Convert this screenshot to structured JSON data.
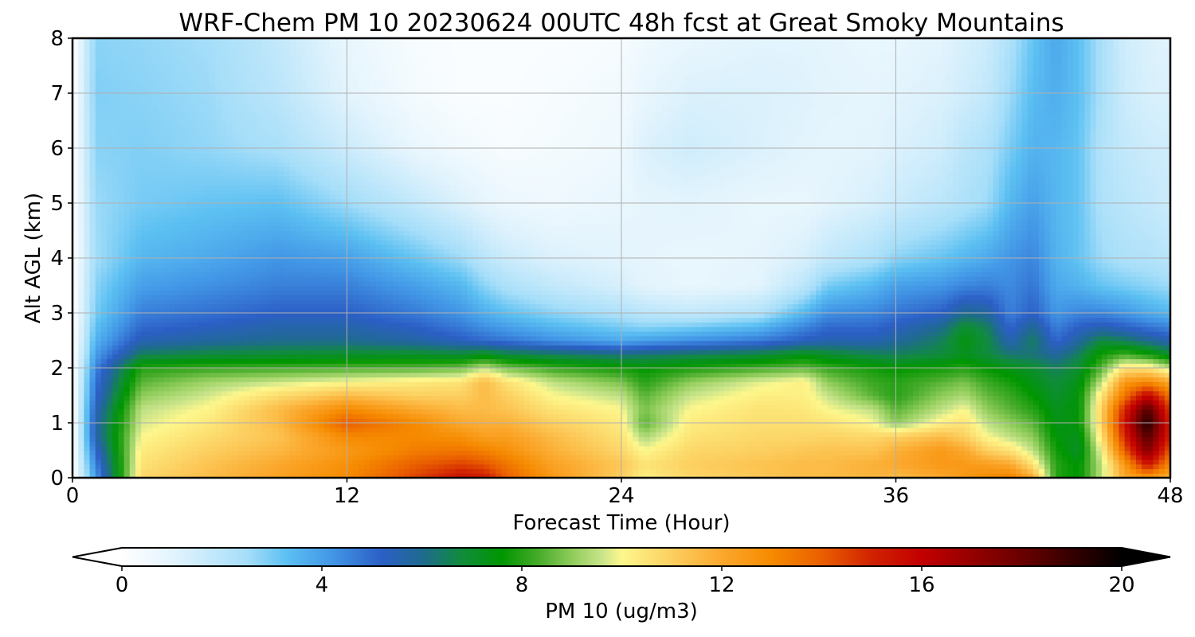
{
  "chart_data": {
    "type": "heatmap",
    "title": "WRF-Chem PM 10  20230624 00UTC 48h fcst at Great Smoky Mountains",
    "xlabel": "Forecast Time (Hour)",
    "ylabel": "Alt AGL (km)",
    "xlim": [
      0,
      48
    ],
    "ylim": [
      0,
      8
    ],
    "x_ticks": [
      0,
      12,
      24,
      36,
      48
    ],
    "x_tick_labels": [
      "0",
      "12",
      "24",
      "36",
      "48"
    ],
    "y_ticks": [
      0,
      1,
      2,
      3,
      4,
      5,
      6,
      7,
      8
    ],
    "y_tick_labels": [
      "0",
      "1",
      "2",
      "3",
      "4",
      "5",
      "6",
      "7",
      "8"
    ],
    "grid": true,
    "x": [
      0,
      1,
      3,
      6,
      9,
      12,
      15,
      17,
      18,
      19,
      21,
      24,
      25,
      27,
      30,
      32,
      33,
      35,
      36,
      38,
      39,
      40,
      41,
      42,
      43,
      44,
      45,
      46,
      47,
      48
    ],
    "y": [
      0,
      0.25,
      0.5,
      0.75,
      1,
      1.25,
      1.5,
      1.75,
      2,
      2.25,
      2.5,
      2.75,
      3,
      3.5,
      4,
      5,
      6,
      7,
      8
    ],
    "z": [
      [
        0,
        4.0,
        10.8,
        11.5,
        12.2,
        13.0,
        14.5,
        15.5,
        15.3,
        14.0,
        12.5,
        11.0,
        10.2,
        10.8,
        11.2,
        11.5,
        11.5,
        11.7,
        11.5,
        12.0,
        12.5,
        13.0,
        13.3,
        12.0,
        8.0,
        7.5,
        9.5,
        12.0,
        12.5,
        11.8
      ],
      [
        0,
        4.5,
        10.5,
        11.3,
        12.0,
        12.8,
        14.0,
        14.5,
        14.2,
        13.5,
        12.2,
        11.2,
        10.5,
        11.0,
        11.3,
        11.5,
        11.5,
        11.8,
        12.0,
        12.5,
        12.5,
        12.3,
        12.0,
        10.5,
        8.0,
        7.5,
        9.5,
        12.5,
        15.5,
        13.0
      ],
      [
        0,
        5.0,
        10.3,
        11.0,
        11.6,
        12.5,
        13.3,
        13.5,
        13.2,
        12.8,
        11.8,
        10.8,
        10.0,
        10.8,
        11.0,
        11.2,
        11.3,
        11.3,
        11.8,
        12.5,
        12.0,
        11.0,
        10.5,
        9.5,
        7.8,
        7.0,
        10.0,
        14.0,
        17.5,
        14.0
      ],
      [
        0,
        5.5,
        10.0,
        10.7,
        11.3,
        13.0,
        13.0,
        12.8,
        12.3,
        12.3,
        11.5,
        10.5,
        9.3,
        10.5,
        10.8,
        10.8,
        10.9,
        10.8,
        11.0,
        11.5,
        11.0,
        10.0,
        9.5,
        9.0,
        7.5,
        7.2,
        10.5,
        15.0,
        18.5,
        15.0
      ],
      [
        0,
        5.5,
        9.7,
        10.4,
        11.5,
        14.0,
        13.0,
        12.0,
        11.8,
        11.8,
        11.0,
        10.3,
        8.5,
        10.3,
        10.6,
        10.6,
        10.5,
        10.0,
        9.0,
        10.2,
        10.5,
        9.5,
        9.0,
        8.5,
        7.3,
        7.5,
        11.0,
        15.5,
        19.5,
        15.0
      ],
      [
        0,
        5.3,
        9.5,
        10.1,
        11.5,
        13.0,
        12.0,
        11.5,
        11.5,
        11.3,
        10.5,
        10.0,
        8.8,
        10.0,
        10.5,
        10.4,
        10.0,
        9.5,
        8.5,
        9.5,
        10.0,
        9.0,
        8.5,
        8.0,
        7.2,
        7.5,
        11.0,
        15.0,
        18.5,
        14.5
      ],
      [
        0,
        5.0,
        9.0,
        9.7,
        10.7,
        11.5,
        11.0,
        11.0,
        11.5,
        11.0,
        10.0,
        9.5,
        8.5,
        9.6,
        10.2,
        10.2,
        9.6,
        8.5,
        8.0,
        9.0,
        9.3,
        8.6,
        8.2,
        7.6,
        7.0,
        7.5,
        10.5,
        13.5,
        16.0,
        13.5
      ],
      [
        0,
        4.8,
        8.5,
        9.2,
        9.6,
        10.0,
        10.3,
        10.5,
        11.5,
        10.5,
        9.5,
        8.8,
        8.0,
        9.0,
        9.8,
        10.2,
        9.0,
        8.2,
        8.0,
        8.5,
        8.8,
        8.2,
        7.8,
        7.3,
        6.8,
        7.3,
        9.5,
        12.5,
        13.0,
        12.0
      ],
      [
        0,
        4.5,
        8.0,
        8.2,
        8.3,
        8.4,
        8.5,
        8.7,
        9.5,
        8.8,
        8.2,
        7.8,
        7.6,
        7.9,
        8.3,
        8.6,
        8.2,
        7.8,
        7.6,
        7.8,
        8.0,
        7.6,
        7.3,
        7.0,
        6.5,
        7.0,
        8.5,
        10.5,
        10.5,
        9.5
      ],
      [
        0,
        4.0,
        6.5,
        6.8,
        6.9,
        7.0,
        7.0,
        6.9,
        7.2,
        6.8,
        6.5,
        6.2,
        6.3,
        6.5,
        6.8,
        7.3,
        7.0,
        6.6,
        6.5,
        6.8,
        7.2,
        6.8,
        6.3,
        6.2,
        5.8,
        6.5,
        7.8,
        8.3,
        7.8,
        7.0
      ],
      [
        0,
        3.6,
        5.5,
        5.8,
        6.0,
        6.0,
        5.7,
        5.3,
        5.0,
        4.8,
        4.3,
        3.8,
        4.0,
        4.3,
        4.7,
        5.3,
        5.5,
        5.5,
        5.8,
        6.5,
        7.4,
        6.8,
        5.5,
        6.5,
        5.0,
        5.8,
        6.8,
        6.5,
        6.0,
        5.5
      ],
      [
        0,
        3.3,
        5.0,
        5.3,
        5.6,
        5.6,
        5.2,
        4.7,
        4.3,
        4.0,
        3.5,
        3.0,
        2.8,
        3.0,
        3.5,
        4.5,
        5.0,
        5.0,
        5.3,
        6.0,
        7.0,
        6.5,
        5.0,
        6.0,
        4.6,
        5.2,
        5.5,
        5.2,
        4.8,
        4.5
      ],
      [
        0,
        3.0,
        4.6,
        4.9,
        5.2,
        5.2,
        4.7,
        4.2,
        3.7,
        3.3,
        2.8,
        2.3,
        2.0,
        1.8,
        2.2,
        3.5,
        4.3,
        4.5,
        4.8,
        5.2,
        6.0,
        5.8,
        4.6,
        5.2,
        4.2,
        4.5,
        4.5,
        4.2,
        3.8,
        3.5
      ],
      [
        0,
        2.8,
        4.0,
        4.3,
        4.6,
        4.6,
        4.0,
        3.5,
        2.8,
        2.3,
        1.8,
        1.3,
        1.0,
        0.8,
        1.0,
        2.0,
        3.0,
        3.5,
        4.0,
        4.2,
        4.5,
        4.6,
        4.4,
        4.8,
        3.8,
        3.6,
        3.2,
        3.0,
        2.8,
        2.6
      ],
      [
        0,
        2.5,
        3.5,
        3.8,
        4.2,
        4.0,
        3.2,
        2.6,
        2.0,
        1.6,
        1.2,
        1.0,
        0.9,
        0.8,
        0.9,
        1.3,
        1.8,
        2.3,
        2.8,
        3.2,
        3.5,
        3.8,
        4.2,
        4.5,
        3.6,
        3.2,
        2.6,
        2.3,
        2.2,
        2.0
      ],
      [
        0,
        2.6,
        3.0,
        3.2,
        3.3,
        2.6,
        1.8,
        1.2,
        0.9,
        0.7,
        0.6,
        0.8,
        0.9,
        1.0,
        0.8,
        0.8,
        1.0,
        1.3,
        1.6,
        2.0,
        2.3,
        2.6,
        3.5,
        4.0,
        3.5,
        3.2,
        2.3,
        2.0,
        1.8,
        1.6
      ],
      [
        0,
        2.8,
        2.9,
        2.7,
        2.4,
        1.6,
        0.8,
        0.5,
        0.4,
        0.3,
        0.4,
        0.6,
        1.2,
        1.5,
        1.2,
        1.0,
        0.9,
        1.0,
        1.2,
        1.5,
        2.0,
        2.3,
        3.0,
        3.6,
        3.5,
        3.2,
        2.2,
        1.8,
        1.6,
        1.5
      ],
      [
        0,
        2.9,
        2.8,
        2.6,
        2.0,
        1.0,
        0.4,
        0.2,
        0.2,
        0.2,
        0.3,
        0.5,
        0.8,
        1.2,
        1.2,
        1.1,
        1.0,
        0.9,
        1.0,
        1.2,
        1.5,
        1.8,
        2.6,
        3.4,
        3.7,
        3.3,
        2.4,
        1.6,
        1.3,
        1.2
      ],
      [
        0,
        2.8,
        2.7,
        2.5,
        1.8,
        0.8,
        0.3,
        0.2,
        0.2,
        0.2,
        0.2,
        0.3,
        0.6,
        0.8,
        1.0,
        1.0,
        0.9,
        0.8,
        0.8,
        1.0,
        1.3,
        1.6,
        2.3,
        3.2,
        3.8,
        3.3,
        2.4,
        1.5,
        1.2,
        1.0
      ]
    ],
    "colorbar": {
      "label": "PM 10  (ug/m3)",
      "min": 0,
      "max": 20,
      "ticks": [
        0,
        4,
        8,
        12,
        16,
        20
      ],
      "tick_labels": [
        "0",
        "4",
        "8",
        "12",
        "16",
        "20"
      ],
      "extend": "both",
      "under_color": "#ffffff",
      "over_color": "#000000",
      "color_stops": [
        [
          0,
          "#ffffff"
        ],
        [
          1,
          "#e3f4fd"
        ],
        [
          2.5,
          "#a6def9"
        ],
        [
          3.3,
          "#5cc0f2"
        ],
        [
          4.2,
          "#4296e6"
        ],
        [
          5.2,
          "#2c5fc6"
        ],
        [
          6.0,
          "#1f6a90"
        ],
        [
          6.8,
          "#108c3c"
        ],
        [
          7.6,
          "#009600"
        ],
        [
          8.3,
          "#43aa28"
        ],
        [
          9.0,
          "#8fcc5a"
        ],
        [
          9.6,
          "#c8e48a"
        ],
        [
          10.0,
          "#fdf78c"
        ],
        [
          11.0,
          "#fccf60"
        ],
        [
          12.0,
          "#fba82d"
        ],
        [
          13.0,
          "#f68a00"
        ],
        [
          14.0,
          "#ea5f00"
        ],
        [
          15.0,
          "#d02200"
        ],
        [
          16.0,
          "#c20000"
        ],
        [
          17.0,
          "#960000"
        ],
        [
          18.0,
          "#6a0000"
        ],
        [
          19.0,
          "#350000"
        ],
        [
          20,
          "#000000"
        ]
      ]
    }
  }
}
